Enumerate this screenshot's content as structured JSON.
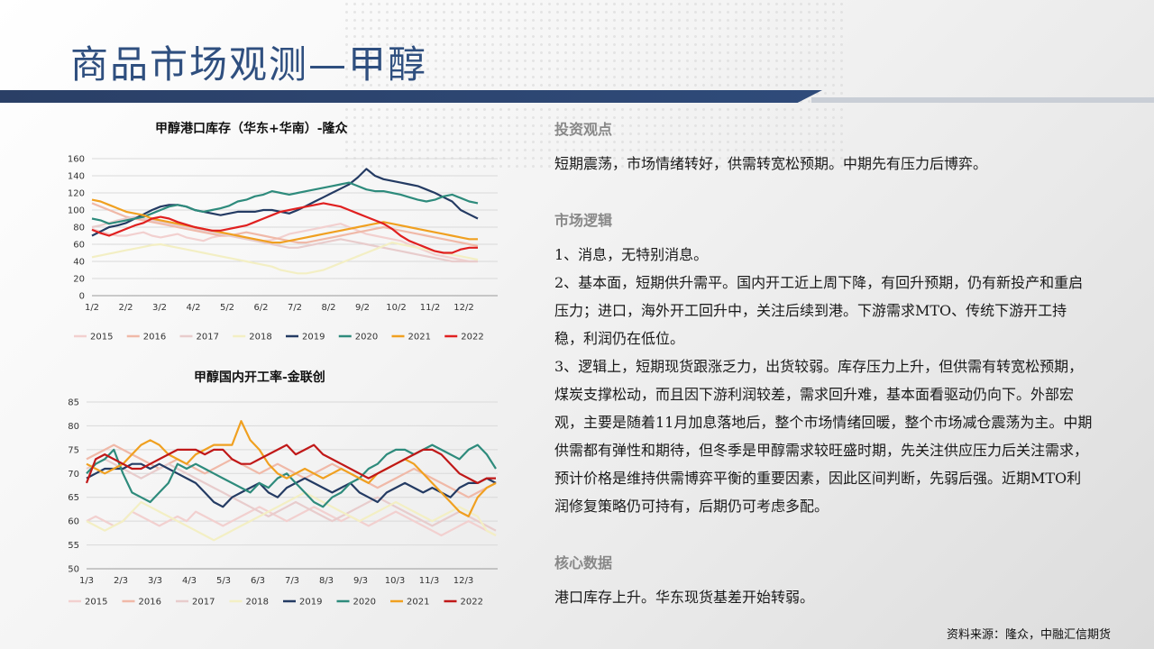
{
  "title": "商品市场观测—甲醇",
  "source": "资料来源：隆众，中融汇信期货",
  "right_panel": {
    "sections": [
      {
        "heading": "投资观点",
        "paragraphs": [
          "短期震荡，市场情绪转好，供需转宽松预期。中期先有压力后博弈。"
        ]
      },
      {
        "heading": "市场逻辑",
        "paragraphs": [
          "1、消息，无特别消息。",
          "2、基本面，短期供升需平。国内开工近上周下降，有回升预期，仍有新投产和重启压力；进口，海外开工回升中，关注后续到港。下游需求MTO、传统下游开工持稳，利润仍在低位。",
          "3、逻辑上，短期现货跟涨乏力，出货较弱。库存压力上升，但供需有转宽松预期，煤炭支撑松动，而且因下游利润较差，需求回升难，基本面看驱动仍向下。外部宏观，主要是随着11月加息落地后，整个市场情绪回暖，整个市场减仓震荡为主。中期供需都有弹性和期待，但冬季是甲醇需求较旺盛时期，先关注供应压力后关注需求，预计价格是维持供需博弈平衡的重要因素，因此区间判断，先弱后强。近期MTO利润修复策略仍可持有，后期仍可考虑多配。"
        ]
      },
      {
        "heading": "核心数据",
        "paragraphs": [
          "港口库存上升。华东现货基差开始转弱。"
        ]
      }
    ]
  },
  "chart_data": [
    {
      "type": "line",
      "title": "甲醇港口库存（华东+华南）-隆众",
      "ylim": [
        0,
        160
      ],
      "yticks": [
        0,
        20,
        40,
        60,
        80,
        100,
        120,
        140,
        160
      ],
      "xticks": [
        "1/2",
        "2/2",
        "3/2",
        "4/2",
        "5/2",
        "6/2",
        "7/2",
        "8/2",
        "9/2",
        "10/2",
        "11/2",
        "12/2"
      ],
      "grid": true,
      "legend": "bottom",
      "series": [
        {
          "name": "2015",
          "color": "#f2d0cf",
          "values": [
            78,
            75,
            72,
            70,
            70,
            72,
            74,
            70,
            68,
            70,
            72,
            68,
            66,
            64,
            68,
            70,
            72,
            70,
            68,
            66,
            64,
            65,
            68,
            72,
            74,
            76,
            78,
            80,
            82,
            84,
            80,
            76,
            72,
            70,
            68,
            66,
            64,
            60,
            56,
            52,
            48,
            46,
            44,
            42,
            40,
            40
          ]
        },
        {
          "name": "2016",
          "color": "#f0b9a8",
          "values": [
            108,
            104,
            100,
            96,
            92,
            90,
            88,
            86,
            84,
            82,
            80,
            78,
            76,
            74,
            72,
            70,
            70,
            72,
            74,
            72,
            70,
            68,
            66,
            64,
            62,
            62,
            64,
            66,
            68,
            70,
            72,
            74,
            76,
            78,
            80,
            78,
            76,
            74,
            72,
            70,
            68,
            66,
            64,
            62,
            60,
            58
          ]
        },
        {
          "name": "2017",
          "color": "#e8cccc",
          "values": [
            80,
            82,
            85,
            88,
            90,
            92,
            90,
            88,
            86,
            84,
            82,
            80,
            78,
            76,
            74,
            72,
            70,
            68,
            66,
            64,
            62,
            60,
            58,
            56,
            56,
            58,
            60,
            62,
            64,
            66,
            64,
            62,
            60,
            58,
            56,
            54,
            52,
            50,
            48,
            46,
            44,
            42,
            40,
            40,
            40,
            40
          ]
        },
        {
          "name": "2018",
          "color": "#f3efc4",
          "values": [
            45,
            47,
            49,
            51,
            53,
            55,
            57,
            59,
            60,
            58,
            56,
            54,
            52,
            50,
            48,
            46,
            44,
            42,
            40,
            38,
            36,
            34,
            30,
            28,
            26,
            26,
            28,
            30,
            34,
            38,
            42,
            46,
            50,
            54,
            58,
            62,
            60,
            58,
            56,
            54,
            52,
            50,
            48,
            46,
            44,
            42
          ]
        },
        {
          "name": "2019",
          "color": "#243b63",
          "values": [
            70,
            75,
            80,
            82,
            85,
            90,
            95,
            100,
            104,
            106,
            106,
            104,
            100,
            98,
            96,
            94,
            96,
            98,
            98,
            98,
            100,
            100,
            98,
            96,
            100,
            105,
            110,
            115,
            120,
            125,
            130,
            138,
            148,
            140,
            136,
            134,
            132,
            130,
            128,
            124,
            120,
            115,
            110,
            100,
            95,
            90
          ]
        },
        {
          "name": "2020",
          "color": "#2e8b7c",
          "values": [
            90,
            88,
            84,
            86,
            88,
            90,
            92,
            96,
            100,
            104,
            106,
            104,
            100,
            98,
            100,
            102,
            105,
            110,
            112,
            116,
            118,
            122,
            120,
            118,
            120,
            122,
            124,
            126,
            128,
            130,
            132,
            128,
            124,
            122,
            122,
            120,
            118,
            115,
            112,
            110,
            112,
            116,
            118,
            114,
            110,
            108
          ]
        },
        {
          "name": "2021",
          "color": "#f0a020",
          "values": [
            112,
            110,
            106,
            102,
            98,
            96,
            94,
            90,
            88,
            86,
            84,
            82,
            80,
            78,
            76,
            74,
            72,
            70,
            68,
            66,
            64,
            62,
            62,
            64,
            66,
            68,
            70,
            72,
            74,
            76,
            78,
            80,
            82,
            84,
            86,
            84,
            82,
            80,
            78,
            76,
            74,
            72,
            70,
            68,
            66,
            66
          ]
        },
        {
          "name": "2022",
          "color": "#e02020",
          "values": [
            77,
            73,
            70,
            74,
            78,
            82,
            85,
            90,
            92,
            90,
            86,
            83,
            80,
            78,
            76,
            76,
            78,
            80,
            82,
            86,
            90,
            94,
            98,
            100,
            102,
            104,
            106,
            108,
            106,
            104,
            100,
            96,
            92,
            88,
            84,
            78,
            70,
            64,
            60,
            56,
            52,
            50,
            50,
            54,
            56,
            56
          ]
        }
      ]
    },
    {
      "type": "line",
      "title": "甲醇国内开工率-金联创",
      "ylim": [
        50,
        85
      ],
      "yticks": [
        50,
        55,
        60,
        65,
        70,
        75,
        80,
        85
      ],
      "xticks": [
        "1/3",
        "2/3",
        "3/3",
        "4/3",
        "5/3",
        "6/3",
        "7/3",
        "8/3",
        "9/3",
        "10/3",
        "11/3",
        "12/3"
      ],
      "grid": true,
      "legend": "bottom",
      "series": [
        {
          "name": "2015",
          "color": "#f2d0cf",
          "values": [
            60,
            61,
            60,
            59,
            60,
            62,
            61,
            60,
            59,
            60,
            61,
            60,
            62,
            61,
            60,
            59,
            60,
            61,
            62,
            63,
            62,
            61,
            60,
            61,
            62,
            63,
            62,
            61,
            60,
            61,
            60,
            59,
            60,
            61,
            62,
            61,
            60,
            59,
            58,
            57,
            58,
            59,
            60,
            59,
            58,
            57
          ]
        },
        {
          "name": "2016",
          "color": "#f0b9a8",
          "values": [
            73,
            74,
            75,
            76,
            75,
            74,
            73,
            72,
            71,
            72,
            73,
            72,
            71,
            70,
            71,
            72,
            73,
            72,
            71,
            70,
            71,
            72,
            71,
            70,
            69,
            70,
            71,
            72,
            71,
            70,
            69,
            68,
            67,
            68,
            69,
            70,
            71,
            70,
            69,
            68,
            67,
            66,
            65,
            66,
            67,
            68
          ]
        },
        {
          "name": "2017",
          "color": "#e8cccc",
          "values": [
            71,
            72,
            73,
            72,
            71,
            70,
            69,
            70,
            71,
            72,
            71,
            70,
            69,
            68,
            67,
            66,
            65,
            64,
            63,
            62,
            61,
            62,
            63,
            64,
            63,
            62,
            61,
            60,
            61,
            62,
            63,
            64,
            65,
            64,
            63,
            62,
            61,
            60,
            59,
            60,
            61,
            62,
            61,
            60,
            59,
            58
          ]
        },
        {
          "name": "2018",
          "color": "#f3efc4",
          "values": [
            60,
            59,
            58,
            59,
            60,
            62,
            64,
            63,
            62,
            61,
            60,
            59,
            58,
            57,
            56,
            57,
            58,
            59,
            60,
            61,
            62,
            63,
            64,
            65,
            66,
            65,
            64,
            63,
            62,
            61,
            60,
            61,
            62,
            63,
            64,
            63,
            62,
            61,
            60,
            61,
            62,
            63,
            62,
            61,
            58,
            57
          ]
        },
        {
          "name": "2019",
          "color": "#243b63",
          "values": [
            69,
            70,
            71,
            71,
            71,
            72,
            72,
            71,
            72,
            71,
            70,
            69,
            68,
            66,
            64,
            63,
            65,
            66,
            67,
            68,
            66,
            65,
            67,
            68,
            69,
            68,
            67,
            66,
            67,
            68,
            66,
            65,
            64,
            66,
            67,
            68,
            67,
            66,
            67,
            66,
            65,
            67,
            68,
            68,
            69,
            68
          ]
        },
        {
          "name": "2020",
          "color": "#2e8b7c",
          "values": [
            70,
            72,
            73,
            75,
            70,
            66,
            65,
            64,
            66,
            68,
            72,
            71,
            72,
            71,
            70,
            69,
            68,
            67,
            66,
            68,
            67,
            69,
            70,
            68,
            66,
            64,
            63,
            65,
            66,
            68,
            69,
            71,
            72,
            74,
            75,
            75,
            74,
            75,
            76,
            75,
            74,
            73,
            75,
            76,
            74,
            71
          ]
        },
        {
          "name": "2021",
          "color": "#f0a020",
          "values": [
            72,
            71,
            70,
            71,
            72,
            74,
            76,
            77,
            76,
            74,
            73,
            72,
            74,
            75,
            76,
            76,
            76,
            81,
            77,
            75,
            72,
            70,
            69,
            70,
            71,
            70,
            69,
            70,
            71,
            70,
            69,
            68,
            70,
            71,
            72,
            73,
            72,
            70,
            68,
            66,
            64,
            62,
            61,
            65,
            67,
            68
          ]
        },
        {
          "name": "2022",
          "color": "#c01818",
          "values": [
            68,
            73,
            74,
            73,
            72,
            71,
            71,
            72,
            73,
            74,
            75,
            75,
            75,
            74,
            75,
            75,
            73,
            72,
            72,
            73,
            74,
            75,
            76,
            74,
            75,
            76,
            74,
            73,
            72,
            71,
            70,
            69,
            70,
            71,
            72,
            73,
            74,
            75,
            75,
            74,
            72,
            70,
            69,
            68,
            69,
            69
          ]
        }
      ]
    }
  ]
}
